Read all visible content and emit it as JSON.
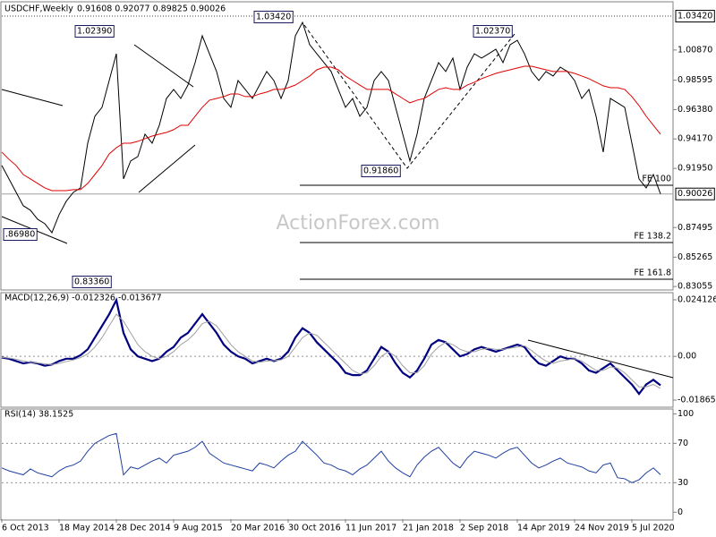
{
  "chart_data": [
    {
      "type": "line",
      "title": "USDCHF,Weekly",
      "subtitle": "0.91608 0.92077 0.89825 0.90026",
      "watermark": "ActionForex.com",
      "ylim": [
        0.8286,
        1.043
      ],
      "yticks": [
        {
          "value": 1.0087,
          "label": "1.00870"
        },
        0.98595,
        {
          "value": 0.9638,
          "label": "0.96380"
        },
        {
          "value": 0.9417,
          "label": "0.94170"
        },
        {
          "value": 0.9195,
          "label": "0.91950"
        },
        0.87495,
        0.85265,
        0.83055
      ],
      "high_line": {
        "value": 1.0342,
        "label": "1.03420"
      },
      "last_price": {
        "value": 0.90026,
        "label": "0.90026"
      },
      "annotations": [
        "1.02390",
        "1.03420",
        "1.02370",
        "0.91860",
        ".86980",
        "0.83360"
      ],
      "fe_levels": [
        "FE 100",
        "FE 138.2",
        "FE 161.8"
      ],
      "series": [
        {
          "color": "#000000",
          "values": [
            0.9217,
            0.9116,
            0.9015,
            0.8914,
            0.888,
            0.8812,
            0.8779,
            0.8711,
            0.8846,
            0.8947,
            0.9015,
            0.9048,
            0.9385,
            0.9588,
            0.9655,
            0.9857,
            1.0059,
            0.9116,
            0.9251,
            0.9284,
            0.9453,
            0.9385,
            0.952,
            0.9722,
            0.979,
            0.9722,
            0.9823,
            0.9992,
            1.0194,
            1.0059,
            0.9925,
            0.9722,
            0.9655,
            0.9857,
            0.979,
            0.9722,
            0.9823,
            0.9925,
            0.9857,
            0.9722,
            0.9857,
            1.0194,
            1.0295,
            1.0127,
            1.0059,
            0.9992,
            0.9925,
            0.979,
            0.9655,
            0.9722,
            0.9588,
            0.9655,
            0.9857,
            0.9925,
            0.9857,
            0.9655,
            0.9453,
            0.9251,
            0.9453,
            0.9722,
            0.9857,
            0.9992,
            0.9925,
            1.0026,
            0.979,
            0.9958,
            1.0059,
            1.0026,
            1.0059,
            1.0093,
            0.9992,
            1.0127,
            1.016,
            1.0059,
            0.9925,
            0.9857,
            0.9925,
            0.9891,
            0.9958,
            0.9925,
            0.9857,
            0.9722,
            0.979,
            0.9588,
            0.9318,
            0.9722,
            0.9689,
            0.9655,
            0.9385,
            0.9116,
            0.9048,
            0.9149,
            0.90026
          ]
        },
        {
          "color": "#e00000",
          "values": [
            0.9318,
            0.9264,
            0.9217,
            0.9149,
            0.9116,
            0.9082,
            0.9048,
            0.9028,
            0.9028,
            0.9028,
            0.9035,
            0.9035,
            0.9082,
            0.9149,
            0.9217,
            0.9304,
            0.9351,
            0.9385,
            0.9385,
            0.9399,
            0.9419,
            0.9439,
            0.9453,
            0.9466,
            0.9487,
            0.952,
            0.952,
            0.9588,
            0.9655,
            0.9709,
            0.9722,
            0.9736,
            0.9756,
            0.9756,
            0.9736,
            0.9736,
            0.9756,
            0.977,
            0.979,
            0.979,
            0.9803,
            0.9823,
            0.9857,
            0.9891,
            0.9938,
            0.9958,
            0.9958,
            0.9938,
            0.9891,
            0.9857,
            0.9823,
            0.979,
            0.979,
            0.979,
            0.979,
            0.9756,
            0.9722,
            0.9689,
            0.9709,
            0.9722,
            0.9756,
            0.979,
            0.9803,
            0.979,
            0.979,
            0.9823,
            0.9844,
            0.9871,
            0.9891,
            0.9911,
            0.9925,
            0.9938,
            0.9951,
            0.9965,
            0.9965,
            0.9951,
            0.9938,
            0.9925,
            0.9925,
            0.9925,
            0.9911,
            0.9891,
            0.9871,
            0.9844,
            0.9817,
            0.9803,
            0.9803,
            0.979,
            0.9736,
            0.9668,
            0.9588,
            0.952,
            0.9453
          ]
        }
      ]
    },
    {
      "type": "line",
      "title": "MACD(12,26,9) -0.012326 -0.013677",
      "ylim": [
        -0.0217,
        0.0268
      ],
      "yticks": [
        0.024126,
        {
          "value": 0,
          "label": "0.00"
        },
        -0.018657
      ],
      "levels": [
        0
      ],
      "series": [
        {
          "color": "#000080",
          "width": 2.2,
          "values": [
            -0.0005,
            -0.001,
            -0.002,
            -0.003,
            -0.0025,
            -0.003,
            -0.004,
            -0.0035,
            -0.002,
            -0.001,
            -0.001,
            0.0005,
            0.003,
            0.008,
            0.013,
            0.018,
            0.024,
            0.01,
            0.003,
            0,
            -0.001,
            -0.002,
            -0.001,
            0.002,
            0.004,
            0.008,
            0.01,
            0.014,
            0.018,
            0.014,
            0.01,
            0.005,
            0.002,
            0,
            -0.001,
            -0.003,
            -0.002,
            -0.001,
            -0.002,
            -0.001,
            0.002,
            0.008,
            0.012,
            0.01,
            0.006,
            0.003,
            0,
            -0.003,
            -0.007,
            -0.008,
            -0.008,
            -0.006,
            -0.001,
            0.004,
            0.002,
            -0.003,
            -0.007,
            -0.009,
            -0.006,
            -0.001,
            0.005,
            0.007,
            0.006,
            0.003,
            0,
            0.001,
            0.003,
            0.004,
            0.003,
            0.002,
            0.003,
            0.004,
            0.005,
            0.004,
            0,
            -0.003,
            -0.004,
            -0.002,
            0,
            -0.001,
            -0.001,
            -0.003,
            -0.006,
            -0.007,
            -0.005,
            -0.003,
            -0.006,
            -0.009,
            -0.012,
            -0.016,
            -0.012,
            -0.01,
            -0.012326
          ]
        },
        {
          "color": "#a0a0a0",
          "width": 1,
          "values": [
            -0.0005,
            -0.0007,
            -0.0012,
            -0.002,
            -0.0025,
            -0.0028,
            -0.0032,
            -0.0035,
            -0.003,
            -0.0022,
            -0.0015,
            -0.0005,
            0.001,
            0.004,
            0.008,
            0.013,
            0.018,
            0.015,
            0.01,
            0.005,
            0.002,
            0,
            -0.001,
            0,
            0.002,
            0.005,
            0.007,
            0.01,
            0.014,
            0.015,
            0.013,
            0.009,
            0.005,
            0.002,
            0,
            -0.002,
            -0.0025,
            -0.002,
            -0.0018,
            -0.0015,
            0,
            0.004,
            0.008,
            0.01,
            0.009,
            0.006,
            0.003,
            0,
            -0.003,
            -0.006,
            -0.0075,
            -0.007,
            -0.004,
            0,
            0.002,
            0,
            -0.004,
            -0.007,
            -0.007,
            -0.004,
            0.001,
            0.004,
            0.006,
            0.005,
            0.003,
            0.002,
            0.002,
            0.003,
            0.0035,
            0.003,
            0.003,
            0.0035,
            0.004,
            0.0045,
            0.0025,
            0,
            -0.002,
            -0.003,
            -0.002,
            -0.0015,
            -0.001,
            -0.002,
            -0.004,
            -0.006,
            -0.006,
            -0.0045,
            -0.005,
            -0.007,
            -0.01,
            -0.013,
            -0.013,
            -0.012,
            -0.013677
          ]
        }
      ]
    },
    {
      "type": "line",
      "title": "RSI(14) 38.1525",
      "ylim": [
        -7,
        104
      ],
      "yticks": [
        100,
        70,
        30,
        0
      ],
      "levels": [
        70,
        30
      ],
      "categories": [
        "6 Oct 2013",
        null,
        null,
        null,
        null,
        null,
        null,
        null,
        "18 May 2014",
        null,
        null,
        null,
        null,
        null,
        null,
        null,
        "28 Dec 2014",
        null,
        null,
        null,
        null,
        null,
        null,
        null,
        "9 Aug 2015",
        null,
        null,
        null,
        null,
        null,
        null,
        null,
        "20 Mar 2016",
        null,
        null,
        null,
        null,
        null,
        null,
        null,
        "30 Oct 2016",
        null,
        null,
        null,
        null,
        null,
        null,
        null,
        "11 Jun 2017",
        null,
        null,
        null,
        null,
        null,
        null,
        null,
        "21 Jan 2018",
        null,
        null,
        null,
        null,
        null,
        null,
        null,
        "2 Sep 2018",
        null,
        null,
        null,
        null,
        null,
        null,
        null,
        "14 Apr 2019",
        null,
        null,
        null,
        null,
        null,
        null,
        null,
        "24 Nov 2019",
        null,
        null,
        null,
        null,
        null,
        null,
        null,
        "5 Jul 2020",
        null,
        null,
        null,
        null
      ],
      "series": [
        {
          "color": "#1f3f9f",
          "width": 1,
          "values": [
            45,
            42,
            40,
            38,
            44,
            40,
            38,
            36,
            42,
            46,
            48,
            52,
            62,
            70,
            74,
            78,
            80,
            38,
            46,
            44,
            48,
            52,
            55,
            50,
            58,
            60,
            62,
            66,
            72,
            60,
            55,
            50,
            48,
            46,
            44,
            42,
            50,
            48,
            45,
            52,
            58,
            62,
            72,
            65,
            58,
            50,
            48,
            44,
            42,
            38,
            44,
            48,
            55,
            62,
            52,
            45,
            40,
            36,
            48,
            56,
            62,
            66,
            58,
            50,
            45,
            55,
            62,
            60,
            58,
            55,
            60,
            64,
            66,
            58,
            50,
            45,
            48,
            52,
            55,
            50,
            48,
            46,
            42,
            40,
            48,
            50,
            35,
            34,
            30,
            33,
            40,
            45,
            38.1525
          ]
        }
      ]
    }
  ]
}
